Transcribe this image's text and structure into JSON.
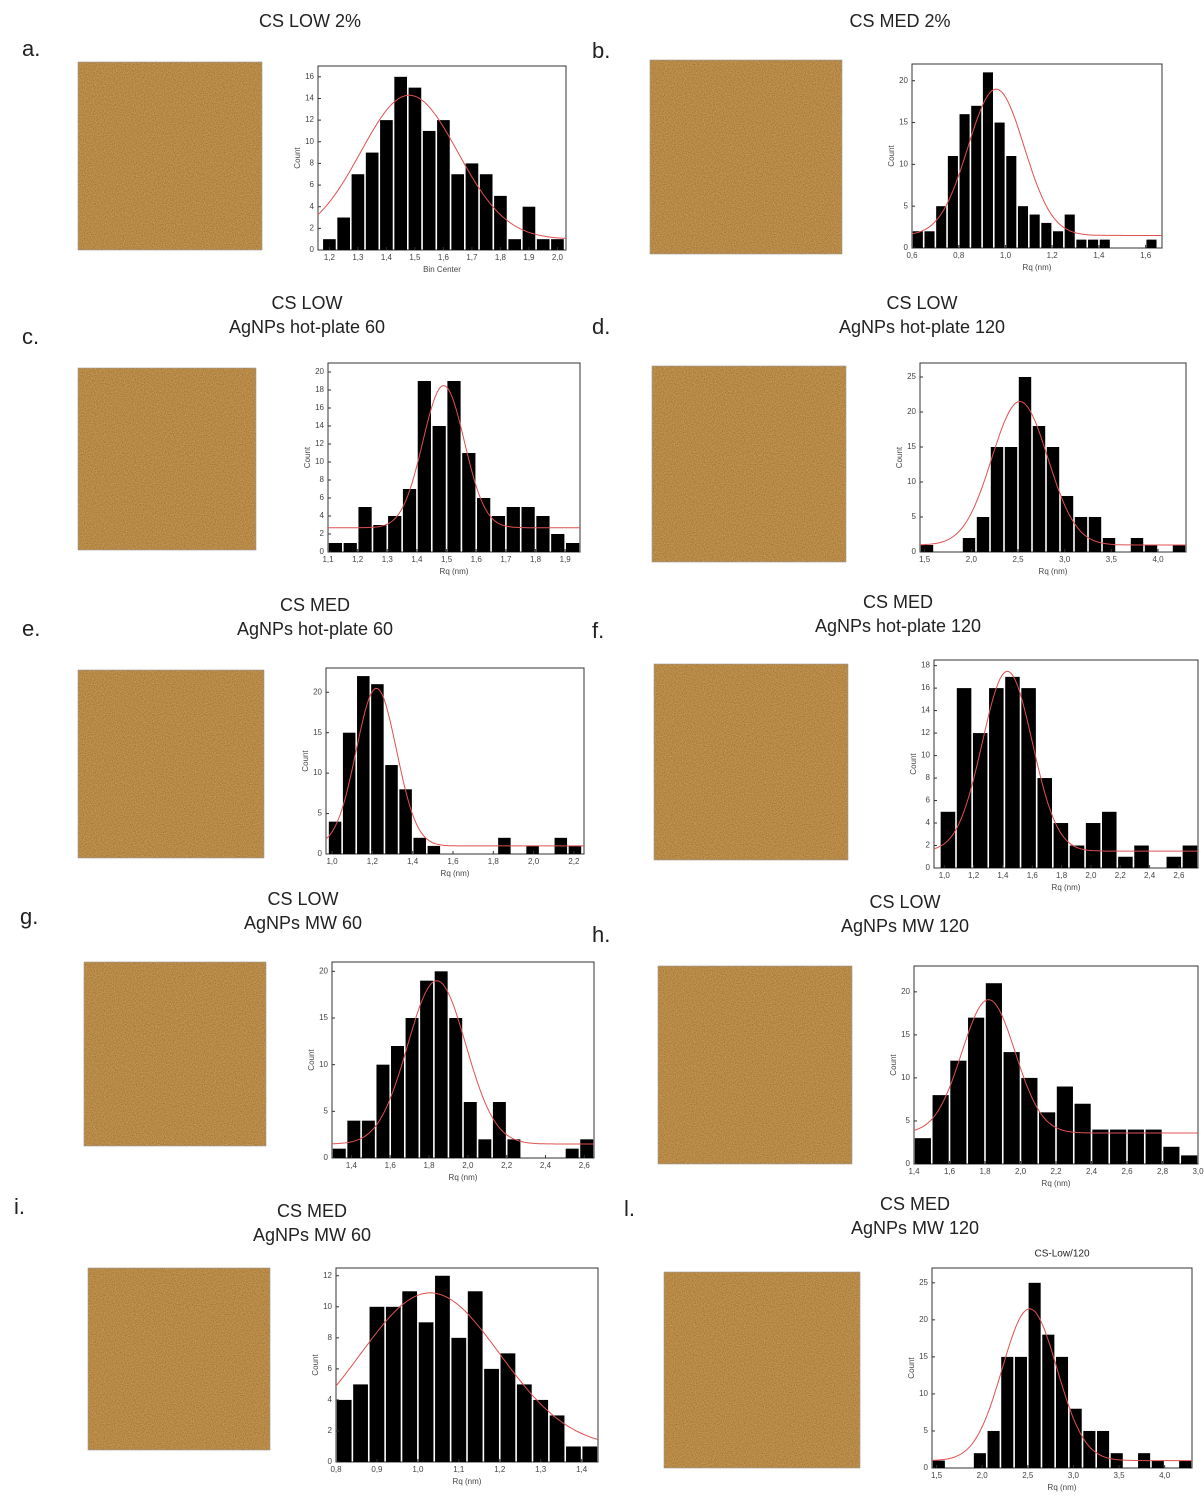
{
  "chart_data": [
    {
      "type": "histogram",
      "panel": "a.",
      "title": "CS LOW 2%",
      "xlabel": "Bin Center",
      "ylabel": "Count",
      "color": "#000000",
      "bins": [
        1.175,
        1.225,
        1.275,
        1.325,
        1.375,
        1.425,
        1.475,
        1.525,
        1.575,
        1.625,
        1.675,
        1.725,
        1.775,
        1.825,
        1.875,
        1.925,
        1.975,
        2.025
      ],
      "values": [
        1,
        3,
        7,
        9,
        12,
        16,
        15,
        11,
        12,
        7,
        8,
        7,
        5,
        1,
        4,
        1,
        1
      ],
      "xlim": [
        1.16,
        2.03
      ],
      "ylim": [
        0,
        17
      ],
      "xticks": [
        {
          "value": 1.2,
          "label": "1,2"
        },
        {
          "value": 1.3,
          "label": "1,3"
        },
        {
          "value": 1.4,
          "label": "1,4"
        },
        {
          "value": 1.5,
          "label": "1,5"
        },
        {
          "value": 1.6,
          "label": "1,6"
        },
        {
          "value": 1.7,
          "label": "1,7"
        },
        {
          "value": 1.8,
          "label": "1,8"
        },
        {
          "value": 1.9,
          "label": "1,9"
        },
        {
          "value": 2.0,
          "label": "2,0"
        }
      ],
      "yticks": [
        0,
        2,
        4,
        6,
        8,
        10,
        12,
        14,
        16
      ],
      "fit": {
        "center": 1.48,
        "height": 13.3,
        "width": 0.17,
        "offset": 1,
        "color": "#e05050"
      }
    },
    {
      "type": "histogram",
      "panel": "b.",
      "title": "CS MED 2%",
      "xlabel": "Rq (nm)",
      "ylabel": "Count",
      "color": "#000000",
      "bins": [
        0.6,
        0.65,
        0.7,
        0.75,
        0.8,
        0.85,
        0.9,
        0.95,
        1.0,
        1.05,
        1.1,
        1.15,
        1.2,
        1.25,
        1.3,
        1.35,
        1.4,
        1.45,
        1.5,
        1.55,
        1.6,
        1.65
      ],
      "values": [
        2,
        2,
        5,
        11,
        16,
        17,
        21,
        15,
        11,
        5,
        4,
        3,
        2,
        4,
        1,
        1,
        1,
        0,
        0,
        0,
        1
      ],
      "xlim": [
        0.6,
        1.67
      ],
      "ylim": [
        0,
        22
      ],
      "xticks": [
        {
          "value": 0.6,
          "label": "0,6"
        },
        {
          "value": 0.8,
          "label": "0,8"
        },
        {
          "value": 1.0,
          "label": "1,0"
        },
        {
          "value": 1.2,
          "label": "1,2"
        },
        {
          "value": 1.4,
          "label": "1,4"
        },
        {
          "value": 1.6,
          "label": "1,6"
        }
      ],
      "yticks": [
        0,
        5,
        10,
        15,
        20
      ],
      "fit": {
        "center": 0.96,
        "height": 17.5,
        "width": 0.12,
        "offset": 1.5,
        "color": "#e05050"
      }
    },
    {
      "type": "histogram",
      "panel": "c.",
      "title": "CS LOW",
      "subtitle": "AgNPs hot-plate 60",
      "xlabel": "Rq (nm)",
      "ylabel": "Count",
      "color": "#000000",
      "bins": [
        1.1,
        1.15,
        1.2,
        1.25,
        1.3,
        1.35,
        1.4,
        1.45,
        1.5,
        1.55,
        1.6,
        1.65,
        1.7,
        1.75,
        1.8,
        1.85,
        1.9,
        1.95
      ],
      "values": [
        1,
        1,
        5,
        3,
        4,
        7,
        19,
        14,
        19,
        11,
        6,
        4,
        5,
        5,
        4,
        2,
        1
      ],
      "xlim": [
        1.1,
        1.95
      ],
      "ylim": [
        0,
        21
      ],
      "xticks": [
        {
          "value": 1.1,
          "label": "1,1"
        },
        {
          "value": 1.2,
          "label": "1,2"
        },
        {
          "value": 1.3,
          "label": "1,3"
        },
        {
          "value": 1.4,
          "label": "1,4"
        },
        {
          "value": 1.5,
          "label": "1,5"
        },
        {
          "value": 1.6,
          "label": "1,6"
        },
        {
          "value": 1.7,
          "label": "1,7"
        },
        {
          "value": 1.8,
          "label": "1,8"
        },
        {
          "value": 1.9,
          "label": "1,9"
        }
      ],
      "yticks": [
        0,
        2,
        4,
        6,
        8,
        10,
        12,
        14,
        16,
        18,
        20
      ],
      "fit": {
        "center": 1.49,
        "height": 15.8,
        "width": 0.07,
        "offset": 2.7,
        "color": "#e05050"
      }
    },
    {
      "type": "histogram",
      "panel": "d.",
      "title": "CS LOW",
      "subtitle": "AgNPs hot-plate 120",
      "xlabel": "Rq (nm)",
      "ylabel": "Count",
      "color": "#000000",
      "bins": [
        1.45,
        1.6,
        1.75,
        1.9,
        2.05,
        2.2,
        2.35,
        2.5,
        2.65,
        2.8,
        2.95,
        3.1,
        3.25,
        3.4,
        3.55,
        3.7,
        3.85,
        4.0,
        4.15,
        4.3
      ],
      "values": [
        1,
        0,
        0,
        2,
        5,
        15,
        15,
        25,
        18,
        15,
        8,
        5,
        5,
        2,
        0,
        2,
        1,
        0,
        1
      ],
      "xlim": [
        1.45,
        4.3
      ],
      "ylim": [
        0,
        27
      ],
      "xticks": [
        {
          "value": 1.5,
          "label": "1,5"
        },
        {
          "value": 2.0,
          "label": "2,0"
        },
        {
          "value": 2.5,
          "label": "2,5"
        },
        {
          "value": 3.0,
          "label": "3,0"
        },
        {
          "value": 3.5,
          "label": "3,5"
        },
        {
          "value": 4.0,
          "label": "4,0"
        }
      ],
      "yticks": [
        0,
        5,
        10,
        15,
        20,
        25
      ],
      "fit": {
        "center": 2.52,
        "height": 20.5,
        "width": 0.3,
        "offset": 1,
        "color": "#e05050"
      }
    },
    {
      "type": "histogram",
      "panel": "e.",
      "title": "CS MED",
      "subtitle": "AgNPs hot-plate 60",
      "xlabel": "Rq (nm)",
      "ylabel": "Count",
      "color": "#000000",
      "bins": [
        0.98,
        1.05,
        1.12,
        1.19,
        1.26,
        1.33,
        1.4,
        1.47,
        1.54,
        1.61,
        1.68,
        1.75,
        1.82,
        1.89,
        1.96,
        2.03,
        2.1,
        2.17,
        2.24
      ],
      "values": [
        4,
        15,
        22,
        21,
        11,
        8,
        2,
        1,
        0,
        0,
        0,
        0,
        2,
        0,
        1,
        0,
        2,
        1
      ],
      "xlim": [
        0.97,
        2.25
      ],
      "ylim": [
        0,
        23
      ],
      "xticks": [
        {
          "value": 1.0,
          "label": "1,0"
        },
        {
          "value": 1.2,
          "label": "1,2"
        },
        {
          "value": 1.4,
          "label": "1,4"
        },
        {
          "value": 1.6,
          "label": "1,6"
        },
        {
          "value": 1.8,
          "label": "1,8"
        },
        {
          "value": 2.0,
          "label": "2,0"
        },
        {
          "value": 2.2,
          "label": "2,2"
        }
      ],
      "yticks": [
        0,
        5,
        10,
        15,
        20
      ],
      "fit": {
        "center": 1.22,
        "height": 19.5,
        "width": 0.1,
        "offset": 1,
        "color": "#e05050"
      }
    },
    {
      "type": "histogram",
      "panel": "f.",
      "title": "CS MED",
      "subtitle": "AgNPs hot-plate  120",
      "xlabel": "Rq (nm)",
      "ylabel": "Count",
      "color": "#000000",
      "bins": [
        0.97,
        1.08,
        1.19,
        1.3,
        1.41,
        1.52,
        1.63,
        1.74,
        1.85,
        1.96,
        2.07,
        2.18,
        2.29,
        2.4,
        2.51,
        2.62,
        2.73
      ],
      "values": [
        5,
        16,
        12,
        16,
        17,
        16,
        8,
        4,
        2,
        4,
        5,
        1,
        2,
        0,
        1,
        2
      ],
      "xlim": [
        0.93,
        2.73
      ],
      "ylim": [
        0,
        18.5
      ],
      "xticks": [
        {
          "value": 1.0,
          "label": "1,0"
        },
        {
          "value": 1.2,
          "label": "1,2"
        },
        {
          "value": 1.4,
          "label": "1,4"
        },
        {
          "value": 1.6,
          "label": "1,6"
        },
        {
          "value": 1.8,
          "label": "1,8"
        },
        {
          "value": 2.0,
          "label": "2,0"
        },
        {
          "value": 2.2,
          "label": "2,2"
        },
        {
          "value": 2.4,
          "label": "2,4"
        },
        {
          "value": 2.6,
          "label": "2,6"
        }
      ],
      "yticks": [
        0,
        2,
        4,
        6,
        8,
        10,
        12,
        14,
        16,
        18
      ],
      "fit": {
        "center": 1.43,
        "height": 16,
        "width": 0.17,
        "offset": 1.5,
        "color": "#e05050"
      }
    },
    {
      "type": "histogram",
      "panel": "g.",
      "title": "CS LOW",
      "subtitle": "AgNPs MW 60",
      "xlabel": "Rq (nm)",
      "ylabel": "Count",
      "color": "#000000",
      "bins": [
        1.3,
        1.375,
        1.45,
        1.525,
        1.6,
        1.675,
        1.75,
        1.825,
        1.9,
        1.975,
        2.05,
        2.125,
        2.2,
        2.275,
        2.35,
        2.425,
        2.5,
        2.575,
        2.65
      ],
      "values": [
        1,
        4,
        4,
        10,
        12,
        15,
        19,
        20,
        15,
        6,
        2,
        6,
        2,
        0,
        0,
        0,
        1,
        2
      ],
      "xlim": [
        1.3,
        2.65
      ],
      "ylim": [
        0,
        21
      ],
      "xticks": [
        {
          "value": 1.4,
          "label": "1,4"
        },
        {
          "value": 1.6,
          "label": "1,6"
        },
        {
          "value": 1.8,
          "label": "1,8"
        },
        {
          "value": 2.0,
          "label": "2,0"
        },
        {
          "value": 2.2,
          "label": "2,2"
        },
        {
          "value": 2.4,
          "label": "2,4"
        },
        {
          "value": 2.6,
          "label": "2,6"
        }
      ],
      "yticks": [
        0,
        5,
        10,
        15,
        20
      ],
      "fit": {
        "center": 1.84,
        "height": 17.5,
        "width": 0.15,
        "offset": 1.5,
        "color": "#e05050"
      }
    },
    {
      "type": "histogram",
      "panel": "h.",
      "title": "CS LOW",
      "subtitle": "AgNPs MW 120",
      "xlabel": "Rq (nm)",
      "ylabel": "Count",
      "color": "#000000",
      "bins": [
        1.4,
        1.5,
        1.6,
        1.7,
        1.8,
        1.9,
        2.0,
        2.1,
        2.2,
        2.3,
        2.4,
        2.5,
        2.6,
        2.7,
        2.8,
        2.9,
        3.0
      ],
      "values": [
        3,
        8,
        12,
        17,
        21,
        13,
        10,
        6,
        9,
        7,
        4,
        4,
        4,
        4,
        2,
        1
      ],
      "xlim": [
        1.4,
        3.0
      ],
      "ylim": [
        0,
        23
      ],
      "xticks": [
        {
          "value": 1.4,
          "label": "1,4"
        },
        {
          "value": 1.6,
          "label": "1,6"
        },
        {
          "value": 1.8,
          "label": "1,8"
        },
        {
          "value": 2.0,
          "label": "2,0"
        },
        {
          "value": 2.2,
          "label": "2,2"
        },
        {
          "value": 2.4,
          "label": "2,4"
        },
        {
          "value": 2.6,
          "label": "2,6"
        },
        {
          "value": 2.8,
          "label": "2,8"
        },
        {
          "value": 3.0,
          "label": "3,0"
        }
      ],
      "yticks": [
        0,
        5,
        10,
        15,
        20
      ],
      "fit": {
        "center": 1.82,
        "height": 15.5,
        "width": 0.15,
        "offset": 3.6,
        "color": "#e05050"
      }
    },
    {
      "type": "histogram",
      "panel": "i.",
      "title": "CS MED",
      "subtitle": "AgNPs MW 60",
      "xlabel": "Rq (nm)",
      "ylabel": "Count",
      "color": "#000000",
      "bins": [
        0.8,
        0.84,
        0.88,
        0.92,
        0.96,
        1.0,
        1.04,
        1.08,
        1.12,
        1.16,
        1.2,
        1.24,
        1.28,
        1.32,
        1.36,
        1.4,
        1.44
      ],
      "values": [
        4,
        5,
        10,
        10,
        11,
        9,
        12,
        8,
        11,
        6,
        7,
        5,
        4,
        3,
        1,
        1
      ],
      "xlim": [
        0.8,
        1.44
      ],
      "ylim": [
        0,
        12.5
      ],
      "xticks": [
        {
          "value": 0.8,
          "label": "0,8"
        },
        {
          "value": 0.9,
          "label": "0,9"
        },
        {
          "value": 1.0,
          "label": "1,0"
        },
        {
          "value": 1.1,
          "label": "1,1"
        },
        {
          "value": 1.2,
          "label": "1,2"
        },
        {
          "value": 1.3,
          "label": "1,3"
        },
        {
          "value": 1.4,
          "label": "1,4"
        }
      ],
      "yticks": [
        0,
        2,
        4,
        6,
        8,
        10,
        12
      ],
      "fit": {
        "center": 1.03,
        "height": 10,
        "width": 0.17,
        "offset": 0.9,
        "color": "#e05050"
      }
    },
    {
      "type": "histogram",
      "panel": "l.",
      "title": "CS MED",
      "subtitle": "AgNPs MW 120",
      "plot_title": "CS-Low/120",
      "xlabel": "Rq (nm)",
      "ylabel": "Count",
      "color": "#000000",
      "bins": [
        1.45,
        1.6,
        1.75,
        1.9,
        2.05,
        2.2,
        2.35,
        2.5,
        2.65,
        2.8,
        2.95,
        3.1,
        3.25,
        3.4,
        3.55,
        3.7,
        3.85,
        4.0,
        4.15,
        4.3
      ],
      "values": [
        1,
        0,
        0,
        2,
        5,
        15,
        15,
        25,
        18,
        15,
        8,
        5,
        5,
        2,
        0,
        2,
        1,
        0,
        1
      ],
      "xlim": [
        1.45,
        4.3
      ],
      "ylim": [
        0,
        27
      ],
      "xticks": [
        {
          "value": 1.5,
          "label": "1,5"
        },
        {
          "value": 2.0,
          "label": "2,0"
        },
        {
          "value": 2.5,
          "label": "2,5"
        },
        {
          "value": 3.0,
          "label": "3,0"
        },
        {
          "value": 3.5,
          "label": "3,5"
        },
        {
          "value": 4.0,
          "label": "4,0"
        }
      ],
      "yticks": [
        0,
        5,
        10,
        15,
        20,
        25
      ],
      "fit": {
        "center": 2.52,
        "height": 20.5,
        "width": 0.3,
        "offset": 1,
        "color": "#e05050"
      }
    }
  ]
}
